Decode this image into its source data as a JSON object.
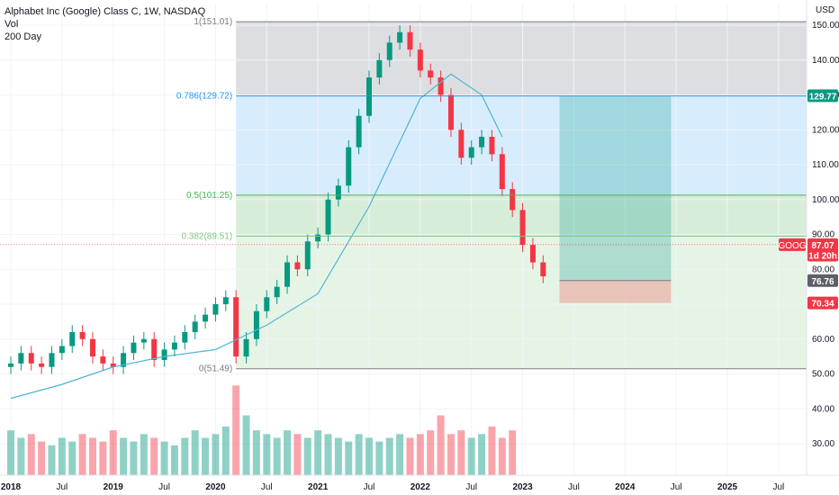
{
  "legend": {
    "title": "Alphabet Inc (Google) Class C, 1W, NASDAQ",
    "vol_label": "Vol",
    "ma_label": "200 Day"
  },
  "price_axis": {
    "currency": "USD",
    "ticks": [
      30,
      40,
      50,
      60,
      70,
      80,
      90,
      100,
      110,
      120,
      130,
      140,
      150
    ],
    "tick_labels": [
      "30.00",
      "40.00",
      "50.00",
      "60.00",
      "70.00",
      "80.00",
      "90.00",
      "100.00",
      "110.00",
      "120.00",
      "130.00",
      "140.00",
      "150.00"
    ]
  },
  "badges": {
    "target": {
      "label": "129.77",
      "color": "#089981"
    },
    "symbol": {
      "label": "GOOG",
      "color": "#f23645"
    },
    "price": {
      "label": "87.07",
      "color": "#f23645"
    },
    "countdown": {
      "label": "1d 20h",
      "color": "#f23645"
    },
    "entry": {
      "label": "76.76",
      "color": "#5d606b"
    },
    "stop": {
      "label": "70.34",
      "color": "#f23645"
    }
  },
  "fib_levels": [
    {
      "label": "1(151.01)",
      "value": 151.01,
      "color": "#787b86"
    },
    {
      "label": "0.786(129.72)",
      "value": 129.72,
      "color": "#2196f3"
    },
    {
      "label": "0.5(101.25)",
      "value": 101.25,
      "color": "#4caf50"
    },
    {
      "label": "0.382(89.51)",
      "value": 89.51,
      "color": "#81c784"
    },
    {
      "label": "0(51.49)",
      "value": 51.49,
      "color": "#787b86"
    }
  ],
  "time_axis": {
    "labels": [
      "2018",
      "Jul",
      "2019",
      "Jul",
      "2020",
      "Jul",
      "2021",
      "Jul",
      "2022",
      "Jul",
      "2023",
      "Jul",
      "2024",
      "Jul",
      "2025",
      "Jul"
    ],
    "times": [
      2018.0,
      2018.5,
      2019.0,
      2019.5,
      2020.0,
      2020.5,
      2021.0,
      2021.5,
      2022.0,
      2022.5,
      2023.0,
      2023.5,
      2024.0,
      2024.5,
      2025.0,
      2025.5
    ]
  },
  "position": {
    "entry": 76.76,
    "target": 129.77,
    "stop": 70.34,
    "start_time": 2023.36,
    "end_time": 2024.45,
    "profit_color": "#26a69a",
    "loss_color": "#ef5350"
  },
  "last_price": 87.07,
  "colors": {
    "up": "#089981",
    "down": "#f23645",
    "ma": "#4fb6d6",
    "grid": "#f0f3fa"
  },
  "chart_data": {
    "type": "line",
    "title": "Alphabet Inc (Google) Class C, 1W, NASDAQ",
    "ylabel": "USD",
    "ylim": [
      20,
      155
    ],
    "xlim": [
      2018.0,
      2025.75
    ],
    "series": [
      {
        "name": "Price",
        "x": [
          2018.0,
          2018.1,
          2018.2,
          2018.3,
          2018.4,
          2018.5,
          2018.6,
          2018.7,
          2018.8,
          2018.9,
          2019.0,
          2019.1,
          2019.2,
          2019.3,
          2019.4,
          2019.5,
          2019.6,
          2019.7,
          2019.8,
          2019.9,
          2020.0,
          2020.1,
          2020.2,
          2020.3,
          2020.4,
          2020.5,
          2020.6,
          2020.7,
          2020.8,
          2020.9,
          2021.0,
          2021.1,
          2021.2,
          2021.3,
          2021.4,
          2021.5,
          2021.6,
          2021.7,
          2021.8,
          2021.9,
          2022.0,
          2022.1,
          2022.2,
          2022.3,
          2022.4,
          2022.5,
          2022.6,
          2022.7,
          2022.8,
          2022.9,
          2023.0,
          2023.1,
          2023.2
        ],
        "values": [
          53,
          56,
          53,
          52,
          56,
          58,
          62,
          60,
          55,
          53,
          52,
          56,
          59,
          60,
          54,
          57,
          59,
          62,
          65,
          67,
          70,
          72,
          55,
          60,
          68,
          72,
          75,
          82,
          80,
          88,
          90,
          100,
          104,
          115,
          124,
          135,
          140,
          145,
          148,
          143,
          137,
          135,
          130,
          120,
          112,
          115,
          118,
          113,
          103,
          97,
          87,
          82,
          78
        ]
      },
      {
        "name": "200 Day",
        "x": [
          2018.0,
          2018.5,
          2019.0,
          2019.5,
          2020.0,
          2020.5,
          2021.0,
          2021.5,
          2022.0,
          2022.3,
          2022.6,
          2022.8
        ],
        "values": [
          43,
          47,
          52,
          55,
          57,
          64,
          73,
          98,
          129,
          136,
          130,
          118
        ]
      }
    ],
    "volume": {
      "name": "Vol",
      "x": [
        2018.0,
        2018.1,
        2018.2,
        2018.3,
        2018.4,
        2018.5,
        2018.6,
        2018.7,
        2018.8,
        2018.9,
        2019.0,
        2019.1,
        2019.2,
        2019.3,
        2019.4,
        2019.5,
        2019.6,
        2019.7,
        2019.8,
        2019.9,
        2020.0,
        2020.1,
        2020.2,
        2020.3,
        2020.4,
        2020.5,
        2020.6,
        2020.7,
        2020.8,
        2020.9,
        2021.0,
        2021.1,
        2021.2,
        2021.3,
        2021.4,
        2021.5,
        2021.6,
        2021.7,
        2021.8,
        2021.9,
        2022.0,
        2022.1,
        2022.2,
        2022.3,
        2022.4,
        2022.5,
        2022.6,
        2022.7,
        2022.8,
        2022.9
      ],
      "values": [
        0.6,
        0.5,
        0.55,
        0.45,
        0.4,
        0.5,
        0.45,
        0.55,
        0.5,
        0.45,
        0.6,
        0.5,
        0.45,
        0.55,
        0.5,
        0.45,
        0.4,
        0.5,
        0.6,
        0.5,
        0.55,
        0.65,
        1.2,
        0.8,
        0.6,
        0.55,
        0.5,
        0.6,
        0.55,
        0.5,
        0.6,
        0.55,
        0.5,
        0.45,
        0.55,
        0.5,
        0.45,
        0.5,
        0.55,
        0.5,
        0.55,
        0.6,
        0.8,
        0.55,
        0.6,
        0.5,
        0.55,
        0.65,
        0.5,
        0.6
      ],
      "ylim": [
        0,
        1.3
      ]
    }
  }
}
